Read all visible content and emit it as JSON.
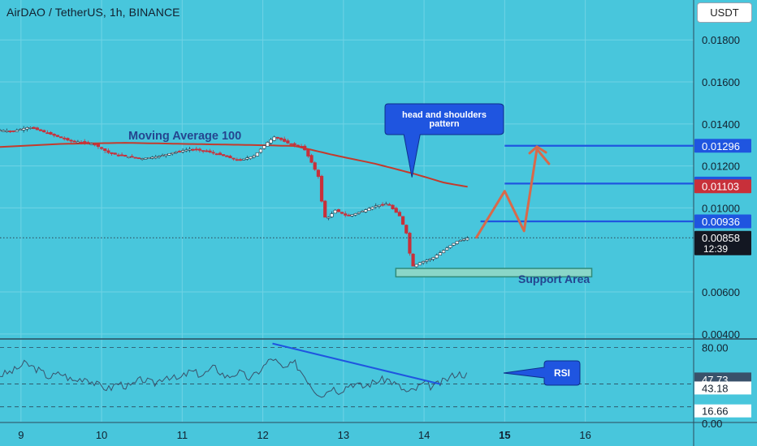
{
  "header": {
    "title": "AirDAO / TetherUS, 1h, BINANCE",
    "currency_button": "USDT"
  },
  "colors": {
    "background": "#48c6dc",
    "grid": "#6fd3e5",
    "candle_up": "#ffffff",
    "candle_down": "#c8303a",
    "moving_average": "#c43a2c",
    "level_line": "#1f55e0",
    "projection": "#d8694a",
    "support_area": "#8ad6c8",
    "rsi_line": "#39516a",
    "rsi_trendline": "#1f55e0",
    "annotation_box": "#1f55e0"
  },
  "chart_data": {
    "type": "candlestick",
    "symbol": "AirDAO / TetherUS",
    "interval": "1h",
    "exchange": "BINANCE",
    "price_axis": {
      "ylim": [
        0.0038,
        0.0199
      ],
      "ticks": [
        "0.01800",
        "0.01600",
        "0.01400",
        "0.01200",
        "0.01000",
        "0.00600",
        "0.00400"
      ]
    },
    "x_axis": {
      "tick_labels": [
        "9",
        "10",
        "11",
        "12",
        "13",
        "14",
        "15",
        "16"
      ],
      "day_range": [
        8.74,
        16.8
      ]
    },
    "price_path": [
      [
        8.74,
        0.0137
      ],
      [
        8.9,
        0.01365
      ],
      [
        9.1,
        0.01385
      ],
      [
        9.3,
        0.0136
      ],
      [
        9.6,
        0.0132
      ],
      [
        9.9,
        0.01305
      ],
      [
        10.1,
        0.0126
      ],
      [
        10.3,
        0.01245
      ],
      [
        10.5,
        0.01235
      ],
      [
        10.7,
        0.01245
      ],
      [
        10.9,
        0.01265
      ],
      [
        11.1,
        0.0128
      ],
      [
        11.3,
        0.0127
      ],
      [
        11.5,
        0.0125
      ],
      [
        11.7,
        0.01225
      ],
      [
        11.9,
        0.0125
      ],
      [
        12.05,
        0.0131
      ],
      [
        12.15,
        0.0134
      ],
      [
        12.3,
        0.0131
      ],
      [
        12.5,
        0.0129
      ],
      [
        12.6,
        0.0122
      ],
      [
        12.7,
        0.0114
      ],
      [
        12.75,
        0.0096
      ],
      [
        12.8,
        0.0095
      ],
      [
        12.9,
        0.0099
      ],
      [
        13.05,
        0.0096
      ],
      [
        13.2,
        0.0098
      ],
      [
        13.4,
        0.0101
      ],
      [
        13.55,
        0.0102
      ],
      [
        13.7,
        0.0096
      ],
      [
        13.78,
        0.0088
      ],
      [
        13.85,
        0.0072
      ],
      [
        13.95,
        0.0074
      ],
      [
        14.1,
        0.0076
      ],
      [
        14.25,
        0.008
      ],
      [
        14.4,
        0.0084
      ],
      [
        14.55,
        0.00858
      ]
    ],
    "moving_average_100": [
      [
        8.74,
        0.0129
      ],
      [
        9.5,
        0.01305
      ],
      [
        10.3,
        0.0131
      ],
      [
        11.0,
        0.01305
      ],
      [
        11.8,
        0.013
      ],
      [
        12.4,
        0.01295
      ],
      [
        12.9,
        0.0125
      ],
      [
        13.4,
        0.0121
      ],
      [
        13.9,
        0.0116
      ],
      [
        14.25,
        0.0112
      ],
      [
        14.55,
        0.011
      ]
    ],
    "current_price": {
      "value": 0.00858,
      "label": "0.00858",
      "countdown": "12:39"
    },
    "levels": [
      {
        "label": "0.01296",
        "value": 0.01296,
        "x_from": 15.0
      },
      {
        "label": "0.01116",
        "value": 0.01116,
        "x_from": 15.0
      },
      {
        "label": "0.00936",
        "value": 0.00936,
        "x_from": 14.7
      }
    ],
    "ma_price_label": {
      "label": "0.01103",
      "value": 0.01103
    },
    "projection_path": [
      [
        14.65,
        0.0086
      ],
      [
        15.0,
        0.0108
      ],
      [
        15.24,
        0.0089
      ],
      [
        15.4,
        0.0128
      ],
      [
        15.55,
        0.0121
      ]
    ],
    "support_area": {
      "x": [
        13.65,
        16.08
      ],
      "y": [
        0.00672,
        0.00712
      ]
    },
    "annotations": {
      "moving_average": "Moving Average 100",
      "head_shoulders_line1": "head and shoulders",
      "head_shoulders_line2": "pattern",
      "support_area": "Support Area",
      "rsi": "RSI"
    },
    "rsi": {
      "ylim": [
        5,
        87
      ],
      "levels": [
        "80.00",
        "47.73",
        "43.18",
        "16.66"
      ],
      "current": 47.73,
      "hidden_tick": "0.00",
      "path": [
        [
          8.74,
          52
        ],
        [
          8.9,
          56
        ],
        [
          9.05,
          64
        ],
        [
          9.2,
          58
        ],
        [
          9.35,
          50
        ],
        [
          9.5,
          54
        ],
        [
          9.65,
          46
        ],
        [
          9.8,
          50
        ],
        [
          9.95,
          42
        ],
        [
          10.1,
          38
        ],
        [
          10.2,
          44
        ],
        [
          10.35,
          40
        ],
        [
          10.5,
          48
        ],
        [
          10.65,
          43
        ],
        [
          10.8,
          52
        ],
        [
          10.95,
          47
        ],
        [
          11.1,
          56
        ],
        [
          11.25,
          52
        ],
        [
          11.4,
          60
        ],
        [
          11.55,
          50
        ],
        [
          11.7,
          55
        ],
        [
          11.85,
          48
        ],
        [
          12.0,
          60
        ],
        [
          12.12,
          70
        ],
        [
          12.25,
          58
        ],
        [
          12.4,
          64
        ],
        [
          12.55,
          48
        ],
        [
          12.65,
          36
        ],
        [
          12.75,
          32
        ],
        [
          12.85,
          40
        ],
        [
          12.95,
          36
        ],
        [
          13.1,
          44
        ],
        [
          13.25,
          40
        ],
        [
          13.4,
          46
        ],
        [
          13.55,
          48
        ],
        [
          13.7,
          40
        ],
        [
          13.8,
          34
        ],
        [
          13.9,
          38
        ],
        [
          14.0,
          44
        ],
        [
          14.1,
          40
        ],
        [
          14.25,
          46
        ],
        [
          14.4,
          54
        ],
        [
          14.55,
          52
        ]
      ],
      "trendline": [
        [
          12.12,
          84
        ],
        [
          14.2,
          43
        ]
      ]
    }
  }
}
